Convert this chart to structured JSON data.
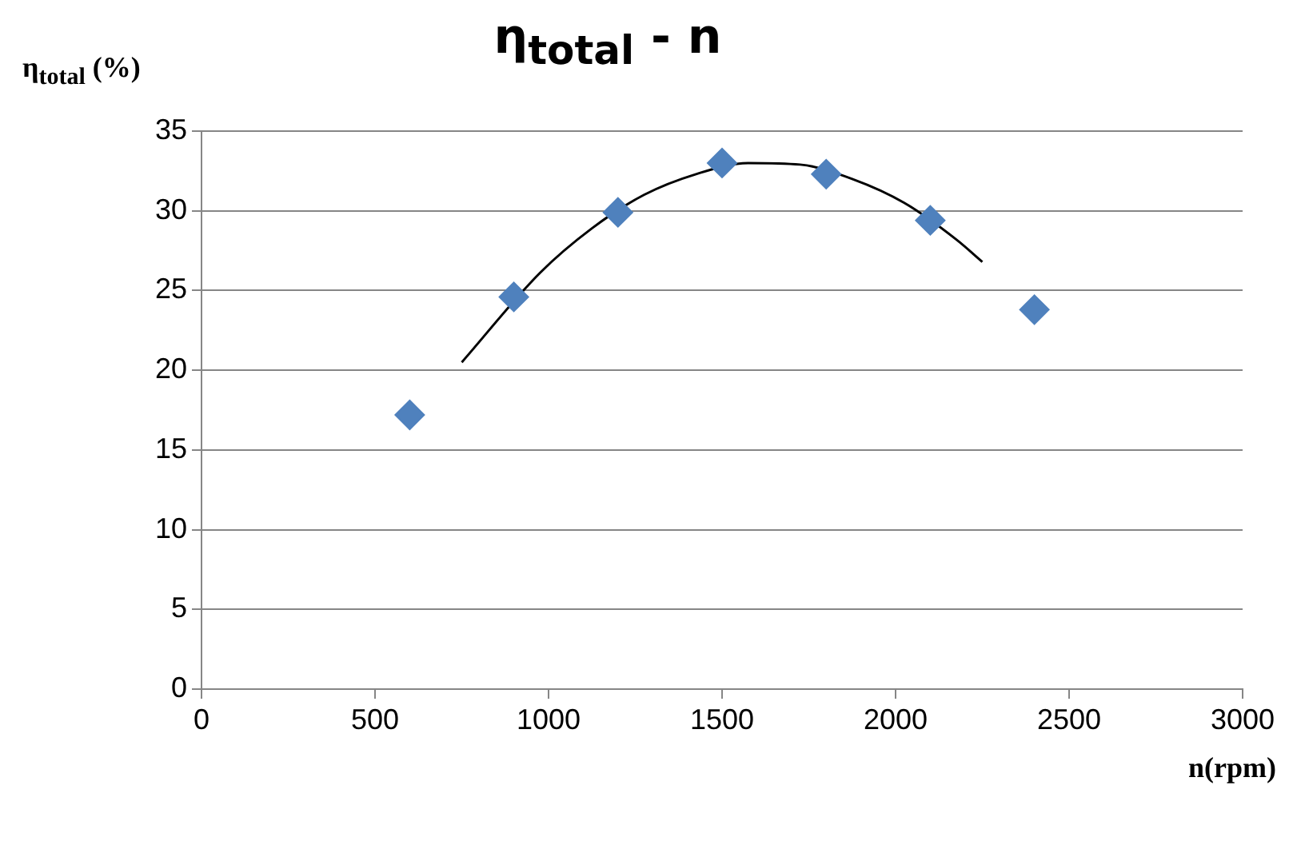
{
  "chart_data": {
    "type": "scatter",
    "title": "η$_{total}$ - n",
    "xlabel": "n(rpm)",
    "ylabel": "η$_{total}$ (%)",
    "xlim": [
      0,
      3000
    ],
    "xticks": [
      0,
      500,
      1000,
      1500,
      2000,
      2500,
      3000
    ],
    "ylim": [
      0,
      35
    ],
    "yticks": [
      0,
      5,
      10,
      15,
      20,
      25,
      30,
      35
    ],
    "grid": "y",
    "legend": false,
    "series": [
      {
        "type": "scatter",
        "color": "#4f81bd",
        "marker": "diamond",
        "x": [
          600,
          900,
          1200,
          1500,
          1800,
          2100,
          2400
        ],
        "values": [
          17.2,
          24.6,
          29.9,
          33.0,
          32.3,
          29.4,
          23.8
        ]
      },
      {
        "type": "line",
        "color": "#000000",
        "marker": "none",
        "line_style": "solid",
        "x": [
          750,
          975,
          1125,
          1275,
          1425,
          1575,
          1725,
          1875,
          2025,
          2175,
          2250
        ],
        "values": [
          20.5,
          26.1,
          28.9,
          31.0,
          32.3,
          33.0,
          32.9,
          32.0,
          30.5,
          28.2,
          26.8
        ]
      }
    ]
  }
}
